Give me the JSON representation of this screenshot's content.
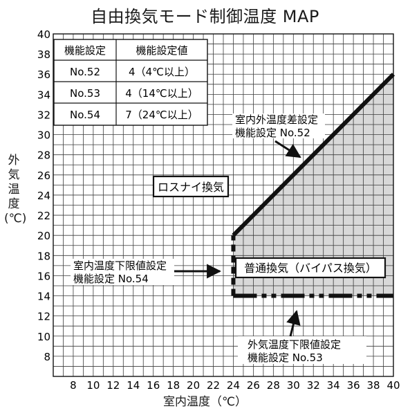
{
  "title": "自由換気モード制御温度 MAP",
  "ylabel_lines": [
    "外",
    "気",
    "温",
    "度",
    "(℃)"
  ],
  "xlabel": "室内温度（℃）",
  "settings_table": {
    "headers": [
      "機能設定",
      "機能設定値"
    ],
    "rows": [
      [
        "No.52",
        "4（4℃以上）"
      ],
      [
        "No.53",
        "4（14℃以上）"
      ],
      [
        "No.54",
        "7（24℃以上）"
      ]
    ]
  },
  "regions": {
    "lossnay": "ロスナイ換気",
    "bypass": "普通換気（バイパス換気）"
  },
  "callouts": {
    "diff": [
      "室内外温度差設定",
      "機能設定 No.52"
    ],
    "indoor_lower": [
      "室内温度下限値設定",
      "機能設定 No.54"
    ],
    "outdoor_lower": [
      "外気温度下限値設定",
      "機能設定 No.53"
    ]
  },
  "chart_data": {
    "type": "region-map",
    "x": {
      "min": 6,
      "max": 40,
      "ticks": [
        8,
        10,
        12,
        14,
        16,
        18,
        20,
        22,
        24,
        26,
        28,
        30,
        32,
        34,
        36,
        38,
        40
      ]
    },
    "y": {
      "min": 6,
      "max": 40,
      "ticks": [
        8,
        10,
        12,
        14,
        16,
        18,
        20,
        22,
        24,
        26,
        28,
        30,
        32,
        34,
        36,
        38,
        40
      ]
    },
    "grid": true,
    "boundaries": {
      "diff_line": [
        [
          24,
          20
        ],
        [
          40,
          36
        ]
      ],
      "indoor_lower_line": [
        [
          24,
          14
        ],
        [
          24,
          20
        ]
      ],
      "outdoor_lower_line": [
        [
          24,
          14
        ],
        [
          40,
          14
        ]
      ]
    },
    "bypass_region": [
      [
        24,
        14
      ],
      [
        24,
        20
      ],
      [
        40,
        36
      ],
      [
        40,
        14
      ]
    ]
  },
  "colors": {
    "shade": "#d8d8d8",
    "grid": "#3a3a3a",
    "ink": "#111111"
  }
}
